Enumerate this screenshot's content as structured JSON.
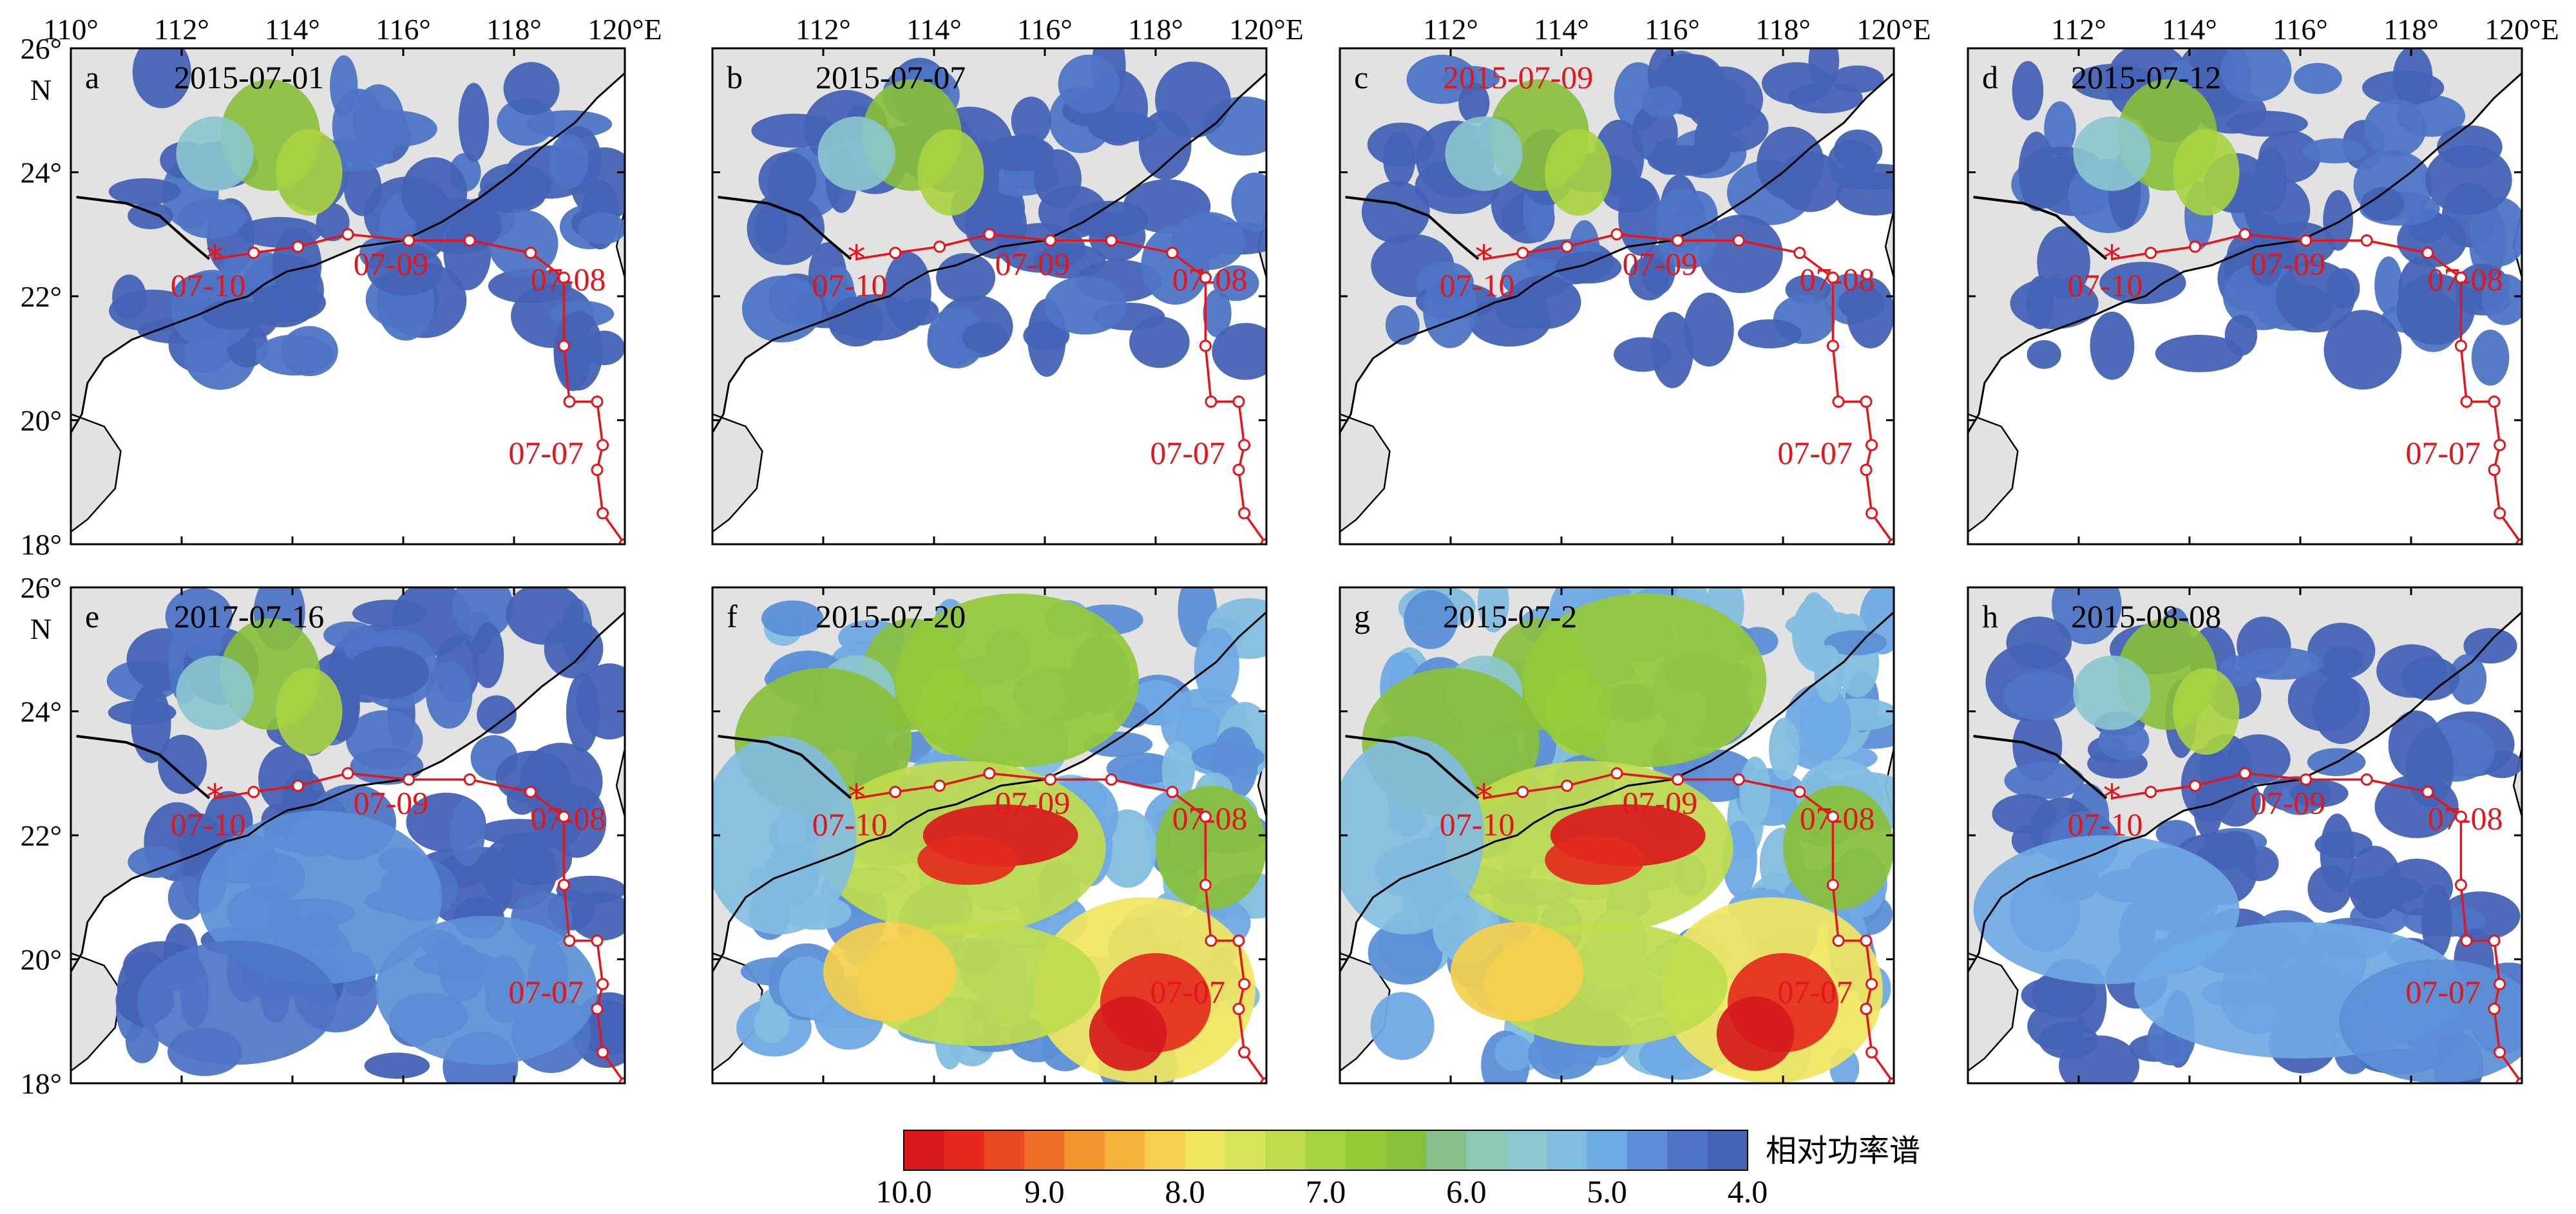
{
  "map": {
    "lon_ticks": [
      "110°",
      "112°",
      "114°",
      "116°",
      "118°",
      "120°E"
    ],
    "lon_ticks_inner": [
      "112°",
      "114°",
      "116°",
      "118°",
      "120°E"
    ],
    "lat_ticks": [
      "26°",
      "24°",
      "22°",
      "20°",
      "18°"
    ],
    "lat_unit": "N",
    "lon_range": [
      110,
      120
    ],
    "lat_range": [
      18,
      26
    ]
  },
  "panels": [
    {
      "letter": "a",
      "date": "2015-07-01",
      "date_color": "#000000",
      "intensity": 0
    },
    {
      "letter": "b",
      "date": "2015-07-07",
      "date_color": "#000000",
      "intensity": 0
    },
    {
      "letter": "c",
      "date": "2015-07-09",
      "date_color": "#e3161c",
      "intensity": 0
    },
    {
      "letter": "d",
      "date": "2015-07-12",
      "date_color": "#000000",
      "intensity": 0
    },
    {
      "letter": "e",
      "date": "2017-07-16",
      "date_color": "#000000",
      "intensity": 1
    },
    {
      "letter": "f",
      "date": "2015-07-20",
      "date_color": "#000000",
      "intensity": 3
    },
    {
      "letter": "g",
      "date": "2015-07-2",
      "date_color": "#000000",
      "intensity": 3
    },
    {
      "letter": "h",
      "date": "2015-08-08",
      "date_color": "#000000",
      "intensity": 2
    }
  ],
  "track": {
    "color": "#e3161c",
    "points": [
      [
        120.0,
        18.0
      ],
      [
        119.6,
        18.5
      ],
      [
        119.5,
        19.2
      ],
      [
        119.6,
        19.6
      ],
      [
        119.5,
        20.3
      ],
      [
        119.0,
        20.3
      ],
      [
        118.9,
        21.2
      ],
      [
        118.9,
        22.3
      ],
      [
        118.3,
        22.7
      ],
      [
        117.2,
        22.9
      ],
      [
        116.1,
        22.9
      ],
      [
        115.0,
        23.0
      ],
      [
        114.1,
        22.8
      ],
      [
        113.3,
        22.7
      ],
      [
        112.6,
        22.6
      ]
    ],
    "end_marker": [
      112.6,
      22.6
    ],
    "labels": [
      {
        "text": "07-07",
        "lon": 117.9,
        "lat": 19.3
      },
      {
        "text": "07-08",
        "lon": 118.3,
        "lat": 22.1
      },
      {
        "text": "07-09",
        "lon": 115.1,
        "lat": 22.35
      },
      {
        "text": "07-10",
        "lon": 111.8,
        "lat": 22.0
      }
    ]
  },
  "colorbar": {
    "title": "相对功率谱",
    "tick_labels": [
      "10.0",
      "9.0",
      "8.0",
      "7.0",
      "6.0",
      "5.0",
      "4.0"
    ],
    "vmin": 4.0,
    "vmax": 10.0,
    "colors": [
      "#d7191c",
      "#e42a1e",
      "#ea4a21",
      "#f06e26",
      "#f3962d",
      "#f5b53a",
      "#f5cf4d",
      "#f0e65f",
      "#d8e45a",
      "#bfdc4d",
      "#a8d340",
      "#94c938",
      "#88c03a",
      "#86c08a",
      "#8dc7b6",
      "#8cc6cf",
      "#82bde0",
      "#6fa9e4",
      "#5c8fd6",
      "#4d74c4",
      "#4463b5"
    ]
  },
  "colors": {
    "land": "#e2e2e2",
    "coast": "#000000",
    "boundary": "#000000",
    "nodata": "#ffffff"
  }
}
